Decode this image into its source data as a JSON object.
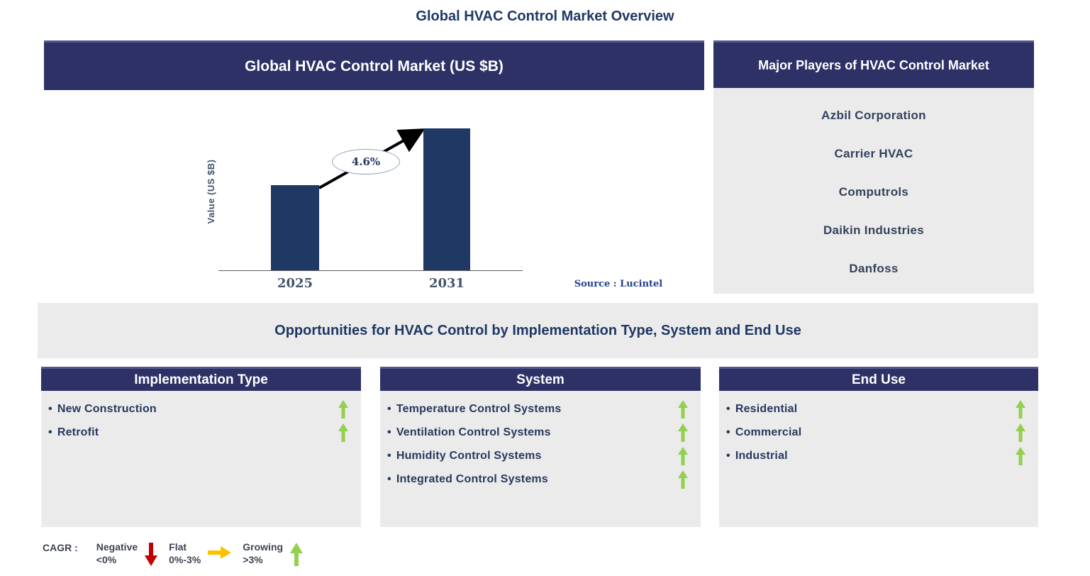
{
  "page_title": "Global HVAC Control Market Overview",
  "colors": {
    "navy": "#2D3166",
    "navy-top-line": "#54588C",
    "bar": "#1F3864",
    "panel-gray": "#EBEBEB",
    "heading-text": "#1F3864",
    "item-text": "#27395E",
    "player-text": "#33425B",
    "axis-text": "#44546A",
    "source-text": "#24408E",
    "legend-text": "#3F4454",
    "green": "#92D050",
    "red": "#C00000",
    "amber": "#FFC000"
  },
  "chart_panel": {
    "header": "Global HVAC Control Market (US $B)"
  },
  "chart_data": {
    "type": "bar",
    "title": "Global HVAC Control Market (US $B)",
    "categories": [
      "2025",
      "2031"
    ],
    "values_relative": [
      0.6,
      1.0
    ],
    "values_labeled": false,
    "ylabel": "Value (US $B)",
    "xlabel": "",
    "annotation": "4.6%",
    "source": "Source : Lucintel",
    "grid": false,
    "bar_color": "#1F3864"
  },
  "players_panel": {
    "header": "Major Players of HVAC Control Market",
    "items": [
      "Azbil Corporation",
      "Carrier HVAC",
      "Computrols",
      "Daikin Industries",
      "Danfoss"
    ]
  },
  "opportunities": {
    "banner": "Opportunities for HVAC Control by Implementation Type, System and End Use",
    "bullet": "•",
    "columns": [
      {
        "header": "Implementation Type",
        "items": [
          {
            "label": "New Construction",
            "trend": "growing"
          },
          {
            "label": "Retrofit",
            "trend": "growing"
          }
        ]
      },
      {
        "header": "System",
        "items": [
          {
            "label": "Temperature Control Systems",
            "trend": "growing"
          },
          {
            "label": "Ventilation Control Systems",
            "trend": "growing"
          },
          {
            "label": "Humidity Control Systems",
            "trend": "growing"
          },
          {
            "label": "Integrated Control Systems",
            "trend": "growing"
          }
        ]
      },
      {
        "header": "End Use",
        "items": [
          {
            "label": "Residential",
            "trend": "growing"
          },
          {
            "label": "Commercial",
            "trend": "growing"
          },
          {
            "label": "Industrial",
            "trend": "growing"
          }
        ]
      }
    ]
  },
  "legend": {
    "label": "CAGR :",
    "items": [
      {
        "name": "Negative",
        "range": "<0%",
        "direction": "down",
        "color": "#C00000"
      },
      {
        "name": "Flat",
        "range": "0%-3%",
        "direction": "right",
        "color": "#FFC000"
      },
      {
        "name": "Growing",
        "range": ">3%",
        "direction": "up",
        "color": "#92D050"
      }
    ]
  }
}
